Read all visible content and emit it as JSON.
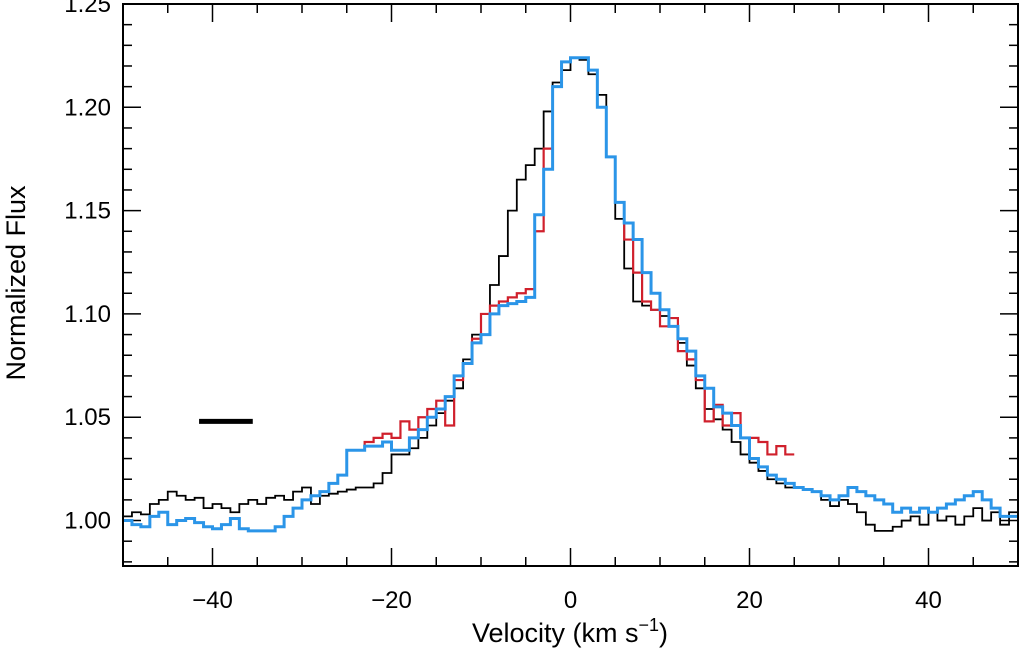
{
  "chart_data": {
    "type": "line",
    "step": true,
    "xlabel": "Velocity (km s",
    "xlabel_sup": "−1",
    "xlabel_close": ")",
    "ylabel": "Normalized Flux",
    "xlim": [
      -50,
      50
    ],
    "ylim": [
      0.978,
      1.25
    ],
    "xticks": [
      -40,
      -20,
      0,
      20,
      40
    ],
    "xtick_labels": [
      "−40",
      "−20",
      "0",
      "20",
      "40"
    ],
    "yticks": [
      1.0,
      1.05,
      1.1,
      1.15,
      1.2,
      1.25
    ],
    "ytick_labels": [
      "1.00",
      "1.05",
      "1.10",
      "1.15",
      "1.20",
      "1.25"
    ],
    "minor_x_step": 5,
    "minor_y_step": 0.01,
    "scale_bar": {
      "x_start": -41.5,
      "x_end": -35.5,
      "y": 1.048,
      "color": "#000000"
    },
    "series": [
      {
        "name": "black",
        "color": "#000000",
        "x": [
          -50,
          -49,
          -48,
          -47,
          -46,
          -45,
          -44,
          -43,
          -42,
          -41,
          -40,
          -39,
          -38,
          -37,
          -36,
          -35,
          -34,
          -33,
          -32,
          -31,
          -30,
          -29,
          -28,
          -27,
          -26,
          -25,
          -24,
          -23,
          -22,
          -21,
          -20,
          -19,
          -18,
          -17,
          -16,
          -15,
          -14,
          -13,
          -12,
          -11,
          -10,
          -9,
          -8,
          -7,
          -6,
          -5,
          -4,
          -3,
          -2,
          -1,
          0,
          1,
          2,
          3,
          4,
          5,
          6,
          7,
          8,
          9,
          10,
          11,
          12,
          13,
          14,
          15,
          16,
          17,
          18,
          19,
          20,
          21,
          22,
          23,
          24,
          25,
          26,
          27,
          28,
          29,
          30,
          31,
          32,
          33,
          34,
          35,
          36,
          37,
          38,
          39,
          40,
          41,
          42,
          43,
          44,
          45,
          46,
          47,
          48,
          49
        ],
        "values": [
          1.002,
          1.004,
          1.003,
          1.008,
          1.01,
          1.014,
          1.012,
          1.01,
          1.011,
          1.006,
          1.008,
          1.006,
          1.004,
          1.008,
          1.01,
          1.008,
          1.011,
          1.012,
          1.01,
          1.014,
          1.016,
          1.008,
          1.012,
          1.013,
          1.014,
          1.015,
          1.016,
          1.016,
          1.018,
          1.023,
          1.032,
          1.032,
          1.035,
          1.04,
          1.046,
          1.052,
          1.058,
          1.064,
          1.078,
          1.09,
          1.1,
          1.114,
          1.128,
          1.15,
          1.165,
          1.172,
          1.18,
          1.198,
          1.212,
          1.218,
          1.224,
          1.223,
          1.216,
          1.206,
          1.176,
          1.146,
          1.122,
          1.106,
          1.104,
          1.102,
          1.099,
          1.094,
          1.086,
          1.075,
          1.064,
          1.054,
          1.049,
          1.044,
          1.038,
          1.032,
          1.028,
          1.024,
          1.02,
          1.018,
          1.016,
          1.016,
          1.015,
          1.014,
          1.01,
          1.007,
          1.01,
          1.008,
          1.004,
          0.998,
          0.995,
          0.995,
          0.997,
          1.0,
          1.002,
          0.998,
          1.004,
          1.0,
          1.002,
          0.998,
          1.002,
          1.006,
          1.0,
          1.004,
          0.998,
          1.004
        ],
        "stroke_width": 1.8
      },
      {
        "name": "red",
        "color": "#d0202c",
        "x": [
          -25,
          -24,
          -23,
          -22,
          -21,
          -20,
          -19,
          -18,
          -17,
          -16,
          -15,
          -14,
          -13,
          -12,
          -11,
          -10,
          -9,
          -8,
          -7,
          -6,
          -5,
          -4,
          -3,
          -2,
          -1,
          0,
          1,
          2,
          3,
          4,
          5,
          6,
          7,
          8,
          9,
          10,
          11,
          12,
          13,
          14,
          15,
          16,
          17,
          18,
          19,
          20,
          21,
          22,
          23,
          24
        ],
        "values": [
          1.034,
          1.034,
          1.038,
          1.04,
          1.042,
          1.04,
          1.048,
          1.044,
          1.05,
          1.054,
          1.058,
          1.046,
          1.068,
          1.076,
          1.088,
          1.1,
          1.104,
          1.106,
          1.108,
          1.11,
          1.112,
          1.14,
          1.18,
          1.21,
          1.222,
          1.224,
          1.224,
          1.218,
          1.2,
          1.176,
          1.154,
          1.136,
          1.12,
          1.106,
          1.102,
          1.094,
          1.098,
          1.082,
          1.078,
          1.068,
          1.048,
          1.056,
          1.046,
          1.052,
          1.04,
          1.04,
          1.038,
          1.032,
          1.036,
          1.032
        ],
        "stroke_width": 2.2
      },
      {
        "name": "blue",
        "color": "#2b95e8",
        "x": [
          -50,
          -49,
          -48,
          -47,
          -46,
          -45,
          -44,
          -43,
          -42,
          -41,
          -40,
          -39,
          -38,
          -37,
          -36,
          -35,
          -34,
          -33,
          -32,
          -31,
          -30,
          -29,
          -28,
          -27,
          -26,
          -25,
          -24,
          -23,
          -22,
          -21,
          -20,
          -19,
          -18,
          -17,
          -16,
          -15,
          -14,
          -13,
          -12,
          -11,
          -10,
          -9,
          -8,
          -7,
          -6,
          -5,
          -4,
          -3,
          -2,
          -1,
          0,
          1,
          2,
          3,
          4,
          5,
          6,
          7,
          8,
          9,
          10,
          11,
          12,
          13,
          14,
          15,
          16,
          17,
          18,
          19,
          20,
          21,
          22,
          23,
          24,
          25,
          26,
          27,
          28,
          29,
          30,
          31,
          32,
          33,
          34,
          35,
          36,
          37,
          38,
          39,
          40,
          41,
          42,
          43,
          44,
          45,
          46,
          47,
          48,
          49
        ],
        "values": [
          1.0,
          0.998,
          0.997,
          1.002,
          1.004,
          0.998,
          1.0,
          1.001,
          0.999,
          0.997,
          0.996,
          0.998,
          1.001,
          0.996,
          0.995,
          0.995,
          0.995,
          0.997,
          1.002,
          1.006,
          1.01,
          1.012,
          1.014,
          1.018,
          1.022,
          1.034,
          1.034,
          1.036,
          1.036,
          1.038,
          1.034,
          1.034,
          1.04,
          1.044,
          1.05,
          1.054,
          1.06,
          1.07,
          1.076,
          1.086,
          1.09,
          1.1,
          1.104,
          1.105,
          1.106,
          1.108,
          1.148,
          1.17,
          1.21,
          1.222,
          1.224,
          1.224,
          1.218,
          1.2,
          1.176,
          1.154,
          1.144,
          1.136,
          1.12,
          1.11,
          1.102,
          1.094,
          1.088,
          1.082,
          1.07,
          1.064,
          1.055,
          1.052,
          1.046,
          1.04,
          1.03,
          1.026,
          1.022,
          1.02,
          1.018,
          1.016,
          1.015,
          1.014,
          1.012,
          1.01,
          1.012,
          1.016,
          1.014,
          1.012,
          1.01,
          1.008,
          1.004,
          1.006,
          1.004,
          1.006,
          1.004,
          1.006,
          1.008,
          1.01,
          1.012,
          1.014,
          1.01,
          1.006,
          1.002,
          1.002
        ],
        "stroke_width": 3
      }
    ]
  }
}
